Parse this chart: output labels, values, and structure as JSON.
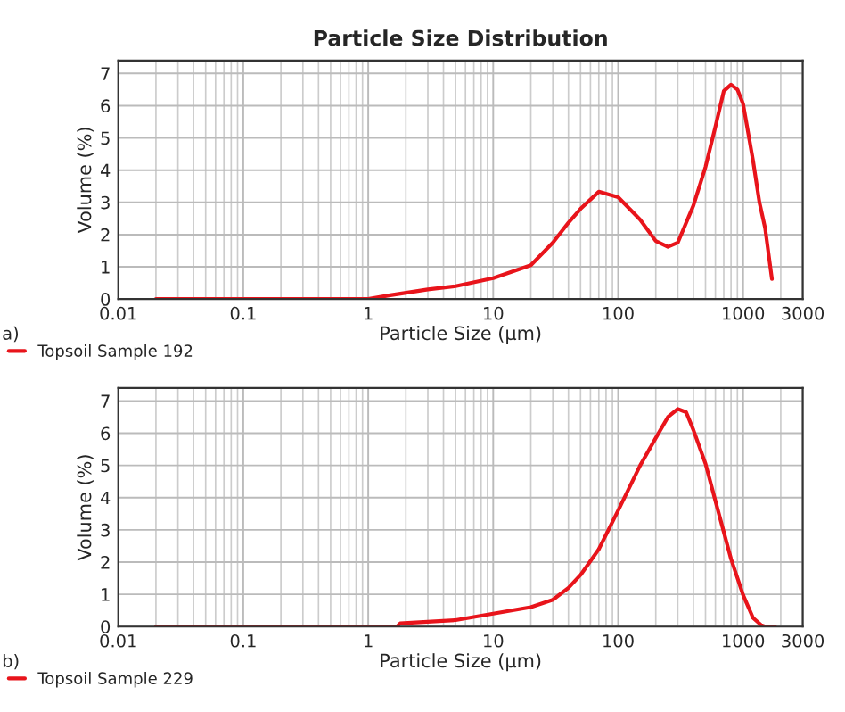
{
  "chart_data": [
    {
      "type": "line",
      "title": "Particle Size Distribution",
      "xlabel": "Particle Size (µm)",
      "ylabel": "Volume (%)",
      "annotations": [
        "a)"
      ],
      "xlim": [
        0.01,
        3000
      ],
      "ylim": [
        0,
        7.4
      ],
      "xticks": [
        0.01,
        0.1,
        1,
        10,
        100,
        1000,
        3000
      ],
      "yticks": [
        0,
        1,
        2,
        3,
        4,
        5,
        6,
        7
      ],
      "log": "x",
      "grid": true,
      "legend": "bottom left",
      "series": [
        {
          "name": "Topsoil Sample 192",
          "color": "#e8141b",
          "x": [
            0.02,
            0.1,
            0.5,
            1,
            1.5,
            3,
            5,
            10,
            20,
            30,
            40,
            50,
            70,
            100,
            150,
            200,
            250,
            300,
            400,
            500,
            600,
            700,
            800,
            900,
            1000,
            1200,
            1350,
            1500,
            1700
          ],
          "values": [
            0,
            0,
            0,
            0,
            0.12,
            0.3,
            0.4,
            0.65,
            1.05,
            1.75,
            2.37,
            2.8,
            3.33,
            3.16,
            2.46,
            1.8,
            1.62,
            1.75,
            2.9,
            4.1,
            5.35,
            6.45,
            6.65,
            6.5,
            6.05,
            4.3,
            3.0,
            2.2,
            0.62
          ]
        }
      ]
    },
    {
      "type": "line",
      "xlabel": "Particle Size (µm)",
      "ylabel": "Volume (%)",
      "annotations": [
        "b)"
      ],
      "xlim": [
        0.01,
        3000
      ],
      "ylim": [
        0,
        7.4
      ],
      "xticks": [
        0.01,
        0.1,
        1,
        10,
        100,
        1000,
        3000
      ],
      "yticks": [
        0,
        1,
        2,
        3,
        4,
        5,
        6,
        7
      ],
      "log": "x",
      "grid": true,
      "legend": "bottom left",
      "series": [
        {
          "name": "Topsoil Sample 229",
          "color": "#e8141b",
          "x": [
            0.02,
            0.1,
            0.5,
            1,
            1.7,
            1.8,
            5,
            10,
            20,
            30,
            40,
            50,
            70,
            100,
            150,
            200,
            250,
            300,
            350,
            400,
            500,
            600,
            800,
            1000,
            1200,
            1400,
            1500,
            1800
          ],
          "values": [
            0,
            0,
            0,
            0,
            0,
            0.1,
            0.2,
            0.4,
            0.6,
            0.83,
            1.2,
            1.6,
            2.4,
            3.6,
            5.0,
            5.85,
            6.5,
            6.75,
            6.65,
            6.1,
            5.05,
            3.9,
            2.1,
            0.98,
            0.27,
            0.04,
            0,
            0
          ]
        }
      ]
    }
  ]
}
